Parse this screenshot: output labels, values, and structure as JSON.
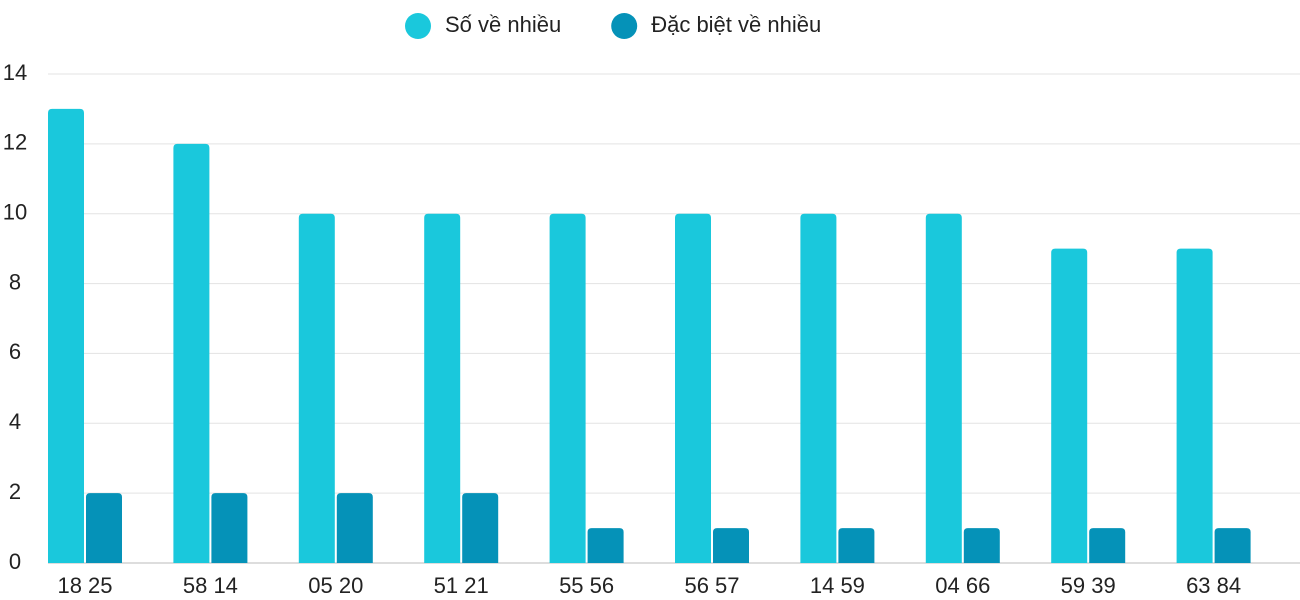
{
  "chart_data": {
    "type": "bar",
    "categories": [
      "18 25",
      "58 14",
      "05 20",
      "51 21",
      "55 56",
      "56 57",
      "14 59",
      "04 66",
      "59 39",
      "63 84"
    ],
    "series": [
      {
        "name": "Số về nhiều",
        "color": "#1ac8dc",
        "values": [
          13,
          12,
          10,
          10,
          10,
          10,
          10,
          10,
          9,
          9
        ]
      },
      {
        "name": "Đặc biệt về nhiều",
        "color": "#0592b8",
        "values": [
          2,
          2,
          2,
          2,
          1,
          1,
          1,
          1,
          1,
          1
        ]
      }
    ],
    "ylim": [
      0,
      14
    ],
    "yticks": [
      0,
      2,
      4,
      6,
      8,
      10,
      12,
      14
    ],
    "grid": true,
    "legend": "top"
  }
}
